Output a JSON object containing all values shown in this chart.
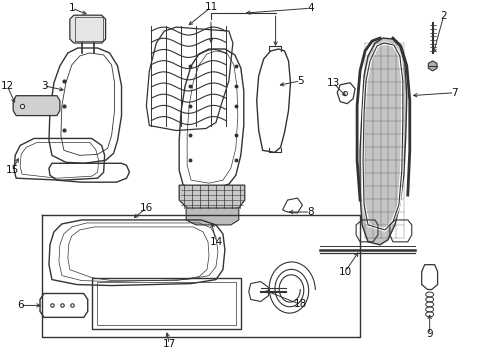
{
  "bg_color": "#ffffff",
  "line_color": "#333333",
  "label_color": "#111111",
  "figsize": [
    4.89,
    3.6
  ],
  "dpi": 100
}
